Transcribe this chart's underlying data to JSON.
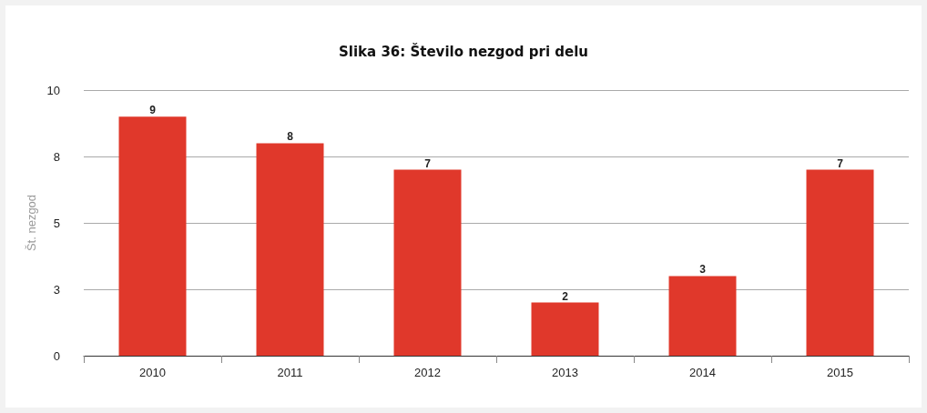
{
  "chart_data": {
    "type": "bar",
    "title": "Slika 36: Število nezgod pri delu",
    "ylabel": "Št. nezgod",
    "categories": [
      "2010",
      "2011",
      "2012",
      "2013",
      "2014",
      "2015"
    ],
    "values": [
      9,
      8,
      7,
      2,
      3,
      7
    ],
    "color": "#e0382b",
    "ylim": [
      0,
      10
    ],
    "yticks": [
      0,
      {
        "value": 2.5,
        "label": "3"
      },
      5,
      {
        "value": 7.5,
        "label": "8"
      },
      10
    ],
    "grid": "y",
    "data_labels": true
  }
}
